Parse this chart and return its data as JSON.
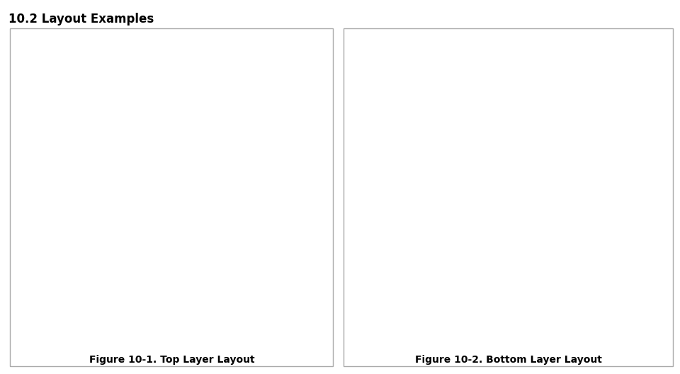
{
  "title": "10.2 Layout Examples",
  "title_fontsize": 12,
  "title_fontweight": "bold",
  "fig_bg": "#ffffff",
  "left_caption": "Figure 10-1. Top Layer Layout",
  "right_caption": "Figure 10-2. Bottom Layer Layout",
  "caption_fontsize": 10,
  "panel_border_color": "#aaaaaa",
  "left_pcb_bg": "#000000",
  "right_pcb_bg": "#000000",
  "red_trace": "#cc0000",
  "yellow": "#ffff00",
  "gray_pad": "#888888",
  "white": "#ffffff",
  "blue": "#3355cc",
  "magenta": "#cc00cc",
  "green_border": "#008800",
  "gray_pad2": "#999999"
}
